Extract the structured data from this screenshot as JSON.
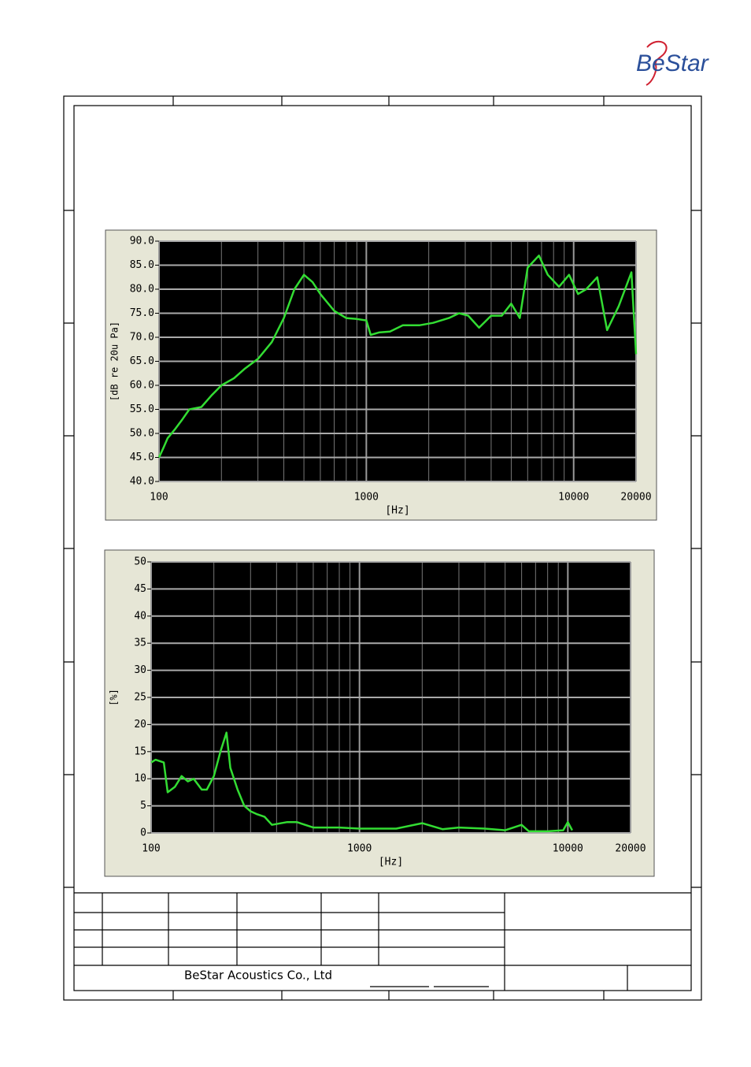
{
  "header": {
    "logo": "BeStar"
  },
  "footer": {
    "company": "BeStar Acoustics Co., Ltd"
  },
  "chart_data": [
    {
      "type": "line",
      "x_label": "[Hz]",
      "y_label": "[dB re 20u Pa]",
      "x_log": true,
      "grid": true,
      "xlim": [
        100,
        20000
      ],
      "xticks": [
        100,
        1000,
        10000,
        20000
      ],
      "x_minor_grid": [
        200,
        300,
        400,
        500,
        600,
        700,
        800,
        900,
        2000,
        3000,
        4000,
        5000,
        6000,
        7000,
        8000,
        9000
      ],
      "ylim": [
        40,
        90
      ],
      "yticks": [
        {
          "value": 40,
          "label": "40.0"
        },
        {
          "value": 45,
          "label": "45.0"
        },
        {
          "value": 50,
          "label": "50.0"
        },
        {
          "value": 55,
          "label": "55.0"
        },
        {
          "value": 60,
          "label": "60.0"
        },
        {
          "value": 65,
          "label": "65.0"
        },
        {
          "value": 70,
          "label": "70.0"
        },
        {
          "value": 75,
          "label": "75.0"
        },
        {
          "value": 80,
          "label": "80.0"
        },
        {
          "value": 85,
          "label": "85.0"
        },
        {
          "value": 90,
          "label": "90.0"
        }
      ],
      "x": [
        100,
        105,
        110,
        120,
        130,
        140,
        160,
        180,
        200,
        230,
        260,
        300,
        350,
        400,
        450,
        500,
        550,
        600,
        700,
        800,
        900,
        1000,
        1050,
        1150,
        1300,
        1500,
        1800,
        2100,
        2500,
        2800,
        3100,
        3500,
        4000,
        4500,
        5000,
        5500,
        6000,
        6800,
        7500,
        8500,
        9500,
        10500,
        11500,
        13000,
        14500,
        16500,
        19000,
        20000
      ],
      "series": [
        {
          "color": "#33dd33",
          "values": [
            45,
            47,
            49,
            51,
            53,
            55,
            55.5,
            58,
            60,
            61.5,
            63.5,
            65.5,
            69,
            74,
            80,
            83,
            81.5,
            79,
            75.5,
            74,
            73.8,
            73.5,
            70.5,
            71,
            71.2,
            72.5,
            72.5,
            73,
            74,
            75,
            74.5,
            72,
            74.5,
            74.5,
            77,
            74,
            84.5,
            87,
            83,
            80.5,
            83,
            79,
            80,
            82.5,
            71.5,
            76.5,
            83.5,
            66.5
          ]
        }
      ]
    },
    {
      "type": "line",
      "x_label": "[Hz]",
      "y_label": "[%]",
      "x_log": true,
      "grid": true,
      "xlim": [
        100,
        20000
      ],
      "xticks": [
        100,
        1000,
        10000,
        20000
      ],
      "x_minor_grid": [
        200,
        300,
        400,
        500,
        600,
        700,
        800,
        900,
        2000,
        3000,
        4000,
        5000,
        6000,
        7000,
        8000,
        9000
      ],
      "ylim": [
        0,
        50
      ],
      "yticks": [
        0,
        5,
        10,
        15,
        20,
        25,
        30,
        35,
        40,
        45,
        50
      ],
      "x": [
        100,
        105,
        115,
        120,
        130,
        140,
        150,
        160,
        175,
        185,
        200,
        215,
        230,
        240,
        260,
        280,
        300,
        320,
        350,
        380,
        450,
        500,
        600,
        800,
        1000,
        1500,
        2000,
        2500,
        3000,
        4000,
        5000,
        6000,
        6500,
        8000,
        9500,
        10000,
        10500
      ],
      "series": [
        {
          "color": "#33dd33",
          "values": [
            13,
            13.5,
            13,
            7.5,
            8.5,
            10.5,
            9.5,
            10,
            8,
            8,
            10.5,
            15,
            18.5,
            12,
            8,
            5,
            4,
            3.5,
            3,
            1.5,
            2,
            2,
            1,
            1,
            0.8,
            0.8,
            1.8,
            0.7,
            1,
            0.8,
            0.5,
            1.5,
            0.3,
            0.3,
            0.5,
            2,
            0.5
          ]
        }
      ]
    }
  ]
}
